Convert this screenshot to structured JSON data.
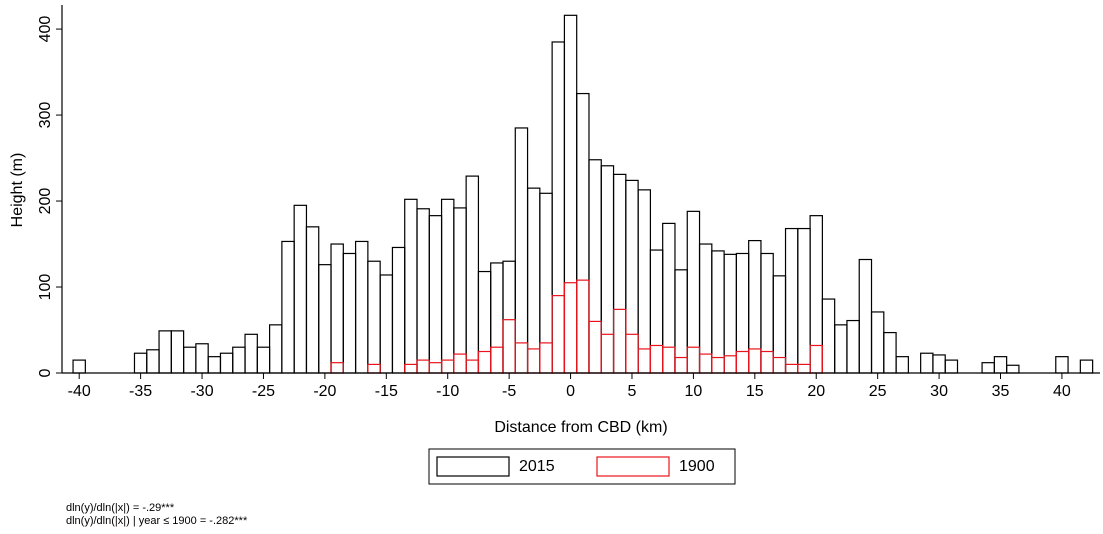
{
  "chart_data": {
    "type": "bar",
    "xlabel": "Distance from CBD (km)",
    "ylabel": "Height (m)",
    "x": [
      -40,
      -39,
      -38,
      -37,
      -36,
      -35,
      -34,
      -33,
      -32,
      -31,
      -30,
      -29,
      -28,
      -27,
      -26,
      -25,
      -24,
      -23,
      -22,
      -21,
      -20,
      -19,
      -18,
      -17,
      -16,
      -15,
      -14,
      -13,
      -12,
      -11,
      -10,
      -9,
      -8,
      -7,
      -6,
      -5,
      -4,
      -3,
      -2,
      -1,
      0,
      1,
      2,
      3,
      4,
      5,
      6,
      7,
      8,
      9,
      10,
      11,
      12,
      13,
      14,
      15,
      16,
      17,
      18,
      19,
      20,
      21,
      22,
      23,
      24,
      25,
      26,
      27,
      28,
      29,
      30,
      31,
      32,
      33,
      34,
      35,
      36,
      37,
      38,
      39,
      40,
      41,
      42
    ],
    "series": [
      {
        "name": "2015",
        "color": "#000000",
        "values": [
          15,
          null,
          null,
          null,
          null,
          23,
          27,
          49,
          49,
          30,
          34,
          19,
          23,
          30,
          45,
          30,
          56,
          153,
          195,
          170,
          126,
          150,
          139,
          153,
          130,
          114,
          146,
          202,
          191,
          183,
          202,
          192,
          229,
          118,
          128,
          130,
          285,
          215,
          209,
          385,
          416,
          325,
          248,
          241,
          231,
          224,
          213,
          143,
          174,
          120,
          188,
          150,
          142,
          138,
          139,
          154,
          139,
          113,
          168,
          168,
          183,
          86,
          56,
          61,
          132,
          71,
          47,
          19,
          null,
          23,
          21,
          15,
          null,
          null,
          12,
          19,
          9,
          null,
          null,
          null,
          19,
          null,
          15
        ]
      },
      {
        "name": "1900",
        "color": "#e8141c",
        "values": [
          null,
          null,
          null,
          null,
          null,
          null,
          null,
          null,
          null,
          null,
          null,
          null,
          null,
          null,
          null,
          null,
          null,
          null,
          null,
          null,
          null,
          12,
          null,
          null,
          10,
          null,
          null,
          10,
          15,
          12,
          15,
          22,
          15,
          25,
          30,
          62,
          35,
          28,
          35,
          90,
          105,
          108,
          60,
          45,
          74,
          45,
          28,
          32,
          30,
          18,
          30,
          22,
          18,
          20,
          25,
          28,
          25,
          18,
          10,
          10,
          32,
          null,
          null,
          null,
          null,
          null,
          null,
          null,
          null,
          null,
          null,
          null,
          null,
          null,
          null,
          null,
          null,
          null,
          null,
          null,
          null,
          null,
          null
        ]
      }
    ],
    "xlim": [
      -41.4,
      43.1
    ],
    "ylim": [
      0,
      428
    ],
    "xticks": [
      -40,
      -35,
      -30,
      -25,
      -20,
      -15,
      -10,
      -5,
      0,
      5,
      10,
      15,
      20,
      25,
      30,
      35,
      40
    ],
    "yticks": [
      0,
      100,
      200,
      300,
      400
    ],
    "annotations": [
      "dln(y)/dln(|x|) = -.29***",
      "dln(y)/dln(|x|) | year ≤ 1900 = -.282***"
    ]
  }
}
